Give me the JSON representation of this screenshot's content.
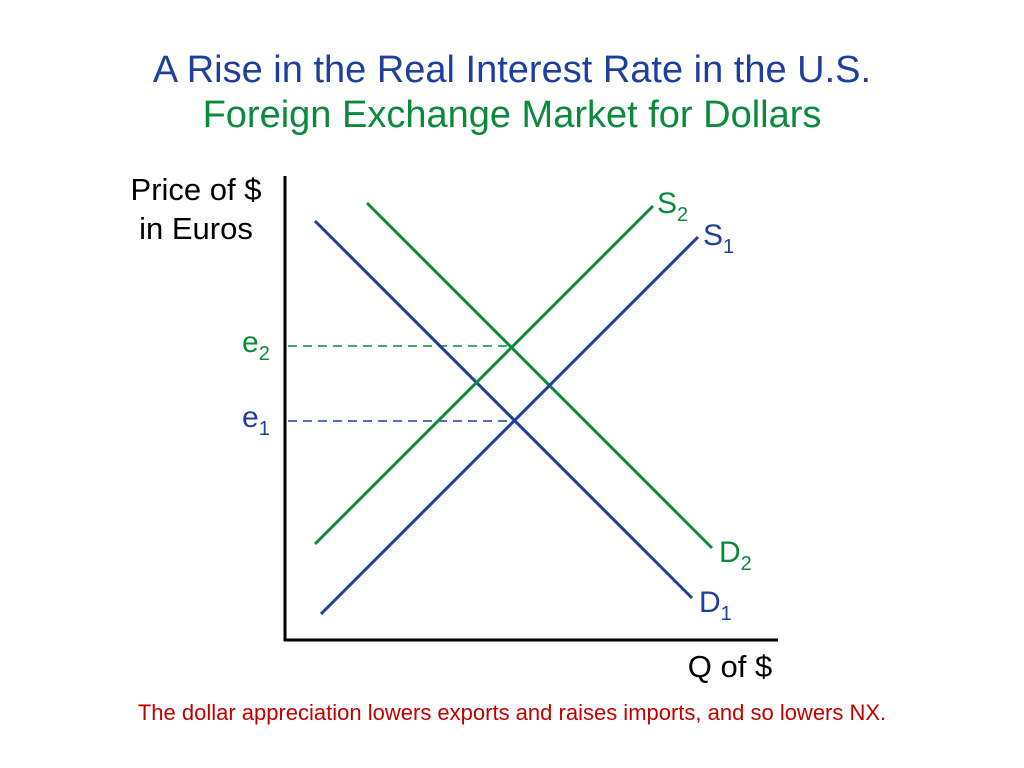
{
  "slide": {
    "title_line1": "A Rise in the Real Interest Rate in the U.S.",
    "title_line2": "Foreign Exchange Market for Dollars",
    "caption": "The dollar appreciation lowers exports and raises imports, and so lowers NX."
  },
  "diagram": {
    "y_axis_label_line1": "Price of $",
    "y_axis_label_line2": "in Euros",
    "x_axis_label": "Q of $",
    "price_labels": [
      {
        "base": "e",
        "sub": "2"
      },
      {
        "base": "e",
        "sub": "1"
      }
    ],
    "curves": [
      {
        "base": "S",
        "sub": "2"
      },
      {
        "base": "S",
        "sub": "1"
      },
      {
        "base": "D",
        "sub": "2"
      },
      {
        "base": "D",
        "sub": "1"
      }
    ]
  },
  "colors": {
    "blue": "#1f3f9f",
    "green": "#0b8a3c",
    "red": "#c00000",
    "axis": "#000000"
  }
}
